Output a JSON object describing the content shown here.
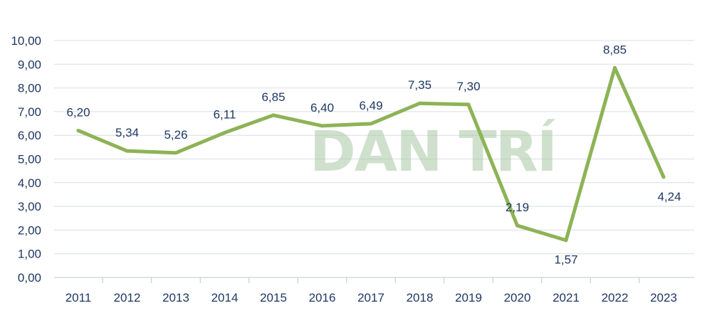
{
  "watermark": "DAN TRÍ",
  "chart_data": {
    "type": "line",
    "title": "",
    "xlabel": "",
    "ylabel": "",
    "ylim": [
      0,
      10
    ],
    "yticks": [
      "0,00",
      "1,00",
      "2,00",
      "3,00",
      "4,00",
      "5,00",
      "6,00",
      "7,00",
      "8,00",
      "9,00",
      "10,00"
    ],
    "categories": [
      "2011",
      "2012",
      "2013",
      "2014",
      "2015",
      "2016",
      "2017",
      "2018",
      "2019",
      "2020",
      "2021",
      "2022",
      "2023"
    ],
    "series": [
      {
        "values": [
          6.2,
          5.34,
          5.26,
          6.11,
          6.85,
          6.4,
          6.49,
          7.35,
          7.3,
          2.19,
          1.57,
          8.85,
          4.24
        ],
        "labels": [
          "6,20",
          "5,34",
          "5,26",
          "6,11",
          "6,85",
          "6,40",
          "6,49",
          "7,35",
          "7,30",
          "2,19",
          "1,57",
          "8,85",
          "4,24"
        ],
        "color": "#8db356"
      }
    ],
    "grid": true,
    "legend": "none"
  }
}
